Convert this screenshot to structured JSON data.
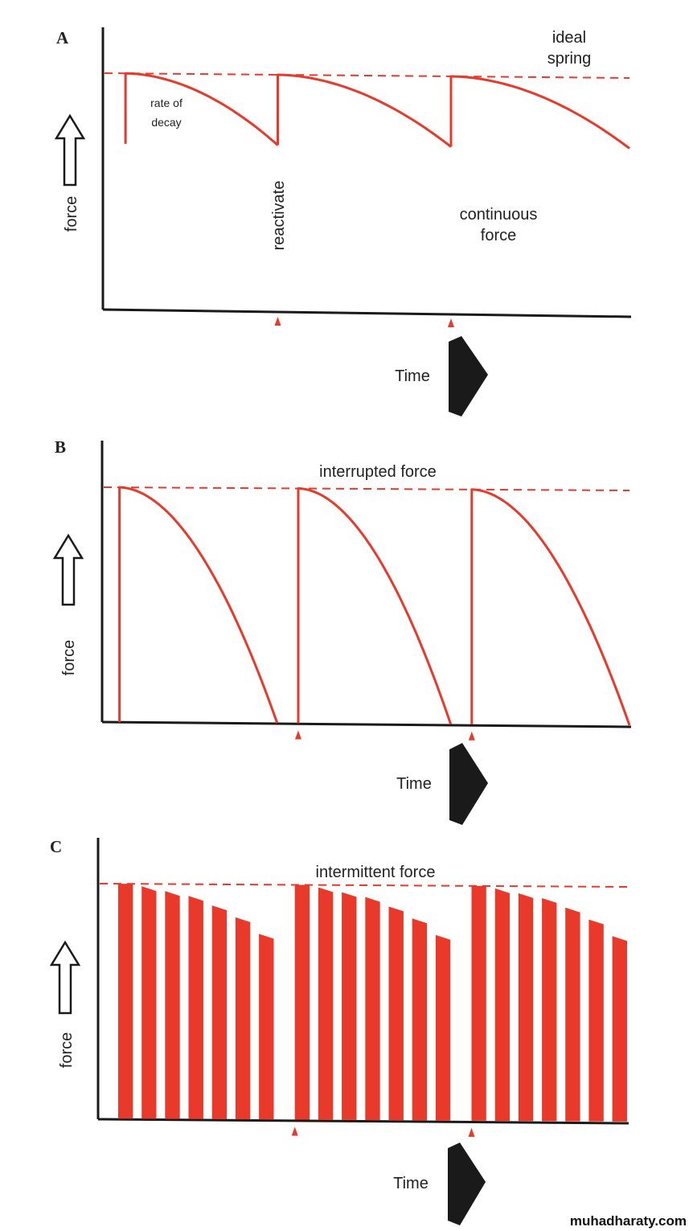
{
  "colors": {
    "curve": "#e8392b",
    "axis": "#1a1a1a",
    "arrow_fill": "#1a1a1a",
    "background": "#ffffff"
  },
  "watermark": "muhadharaty.com",
  "chart_data": [
    {
      "type": "line",
      "panel": "A",
      "reference_label": "ideal spring",
      "reference_label_lines": [
        "ideal",
        "spring"
      ],
      "curve_label_lines": [
        "continuous",
        "force"
      ],
      "annotation_decay_lines": [
        "rate of",
        "decay"
      ],
      "annotation_reactivate": "reactivate",
      "ylabel": "force",
      "xlabel": "Time",
      "ylim": [
        0,
        100
      ],
      "xlim": [
        0,
        100
      ],
      "ideal_level": 100,
      "cycles": [
        {
          "start": 4,
          "end": 33,
          "min": 70
        },
        {
          "start": 33,
          "end": 66,
          "min": 70
        },
        {
          "start": 66,
          "end": 100,
          "min": 70
        }
      ],
      "reactivation_markers": [
        33,
        66
      ]
    },
    {
      "type": "line",
      "panel": "B",
      "reference_label": "interrupted force",
      "ylabel": "force",
      "xlabel": "Time",
      "ylim": [
        0,
        100
      ],
      "xlim": [
        0,
        100
      ],
      "ideal_level": 100,
      "cycles": [
        {
          "start": 3,
          "end": 33,
          "min": 0
        },
        {
          "start": 37,
          "end": 66,
          "min": 0
        },
        {
          "start": 70,
          "end": 100,
          "min": 0
        }
      ],
      "reactivation_markers": [
        37,
        70
      ]
    },
    {
      "type": "bar",
      "panel": "C",
      "reference_label": "intermittent force",
      "ylabel": "force",
      "xlabel": "Time",
      "ylim": [
        0,
        100
      ],
      "xlim": [
        0,
        100
      ],
      "ideal_level": 100,
      "groups": [
        {
          "start": 3.5,
          "values": [
            100,
            98,
            96,
            94,
            90,
            85,
            78
          ]
        },
        {
          "start": 37,
          "values": [
            100,
            98,
            96,
            94,
            90,
            85,
            78
          ]
        },
        {
          "start": 70.5,
          "values": [
            100,
            98,
            96,
            94,
            90,
            85,
            78
          ]
        }
      ],
      "bar_step": 4.45,
      "bar_width": 2.8,
      "reactivation_markers": [
        37,
        70.5
      ]
    }
  ]
}
